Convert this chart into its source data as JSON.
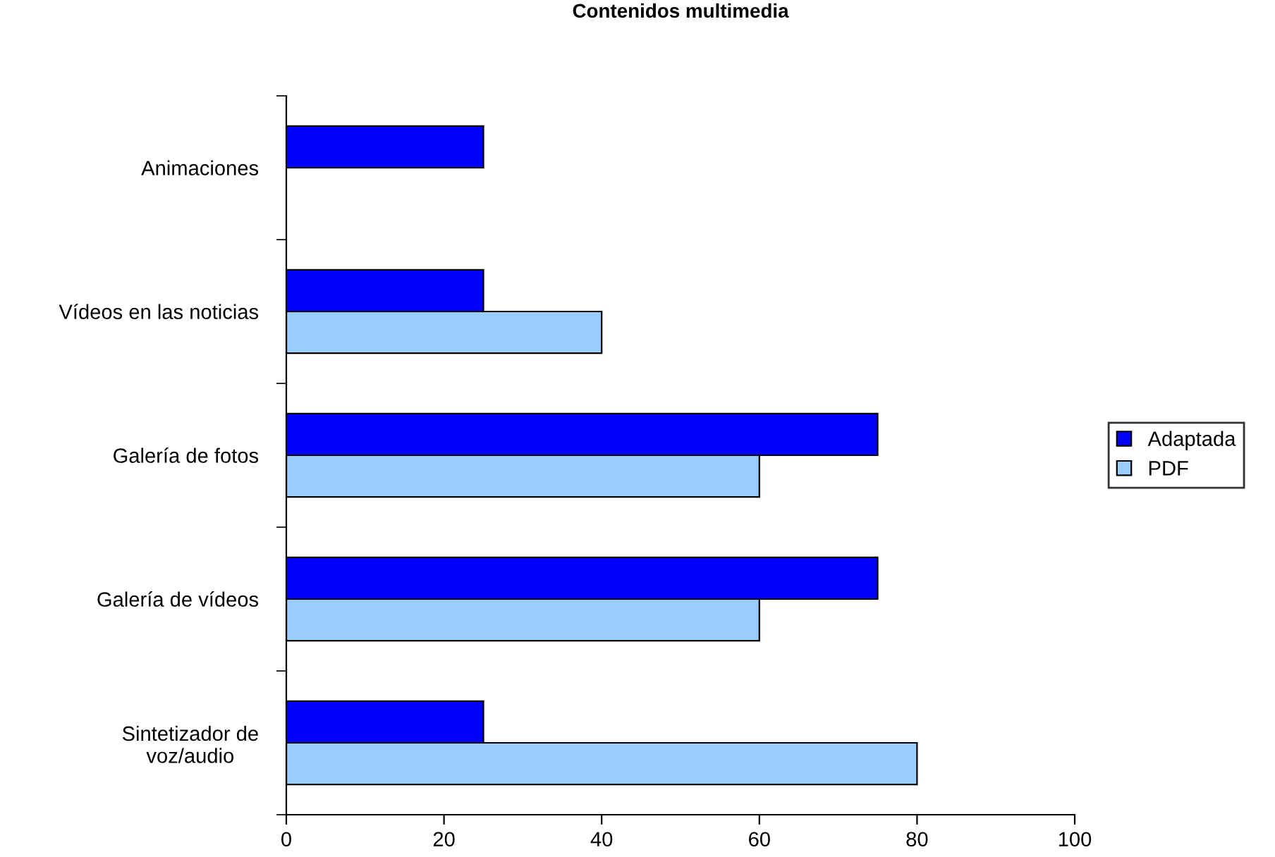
{
  "chart_data": {
    "type": "bar",
    "orientation": "horizontal",
    "title": "Contenidos multimedia",
    "categories": [
      "Animaciones",
      "Vídeos en las noticias",
      "Galería de fotos",
      "Galería de vídeos",
      "Sintetizador de\nvoz/audio"
    ],
    "series": [
      {
        "name": "Adaptada",
        "color": "#0000ff",
        "values": [
          25,
          25,
          75,
          75,
          25
        ]
      },
      {
        "name": "PDF",
        "color": "#99ccff",
        "values": [
          null,
          40,
          60,
          60,
          80
        ]
      }
    ],
    "xlim": [
      0,
      100
    ],
    "xticks": [
      0,
      20,
      40,
      60,
      80,
      100
    ],
    "grid": false,
    "legend": "right"
  }
}
